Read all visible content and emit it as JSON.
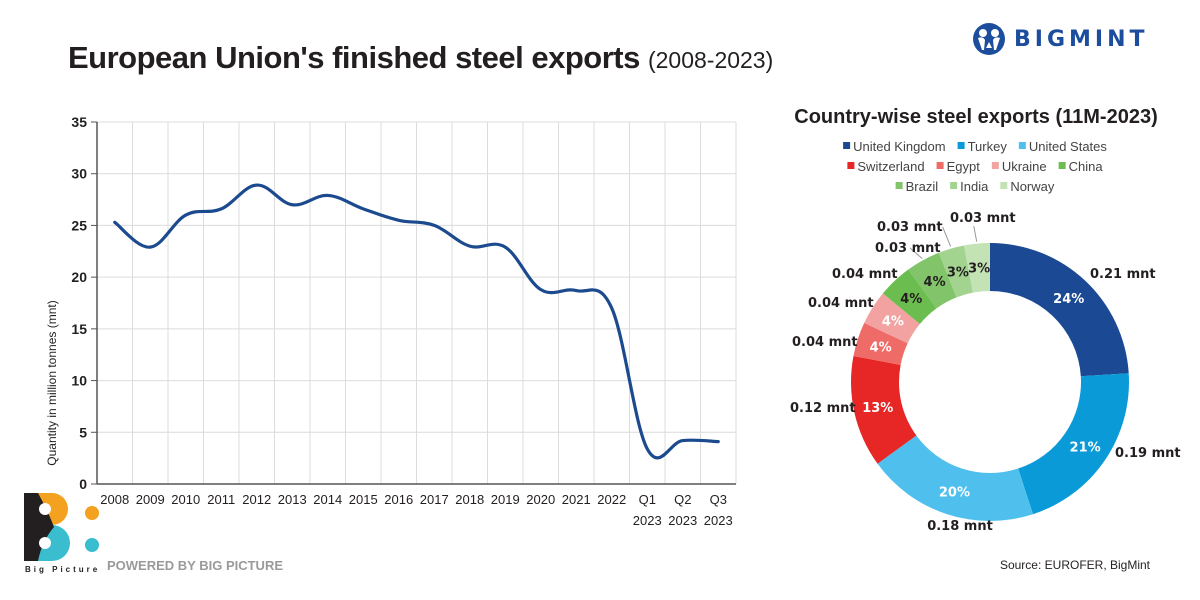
{
  "header": {
    "title_main": "European Union's finished steel exports",
    "title_sub": "(2008-2023)",
    "brand_name": "BIGMINT"
  },
  "footer": {
    "logo_label": "Big Picture",
    "powered_by": "POWERED BY BIG PICTURE",
    "source": "Source: EUROFER, BigMint"
  },
  "chart_data": [
    {
      "type": "line",
      "title": "European Union's finished steel exports (2008-2023)",
      "xlabel": "",
      "ylabel": "Quantity in million tonnes (mnt)",
      "ylim": [
        0,
        35
      ],
      "yticks": [
        0,
        5,
        10,
        15,
        20,
        25,
        30,
        35
      ],
      "grid": true,
      "color": "#1c4a8e",
      "categories": [
        [
          "2008"
        ],
        [
          "2009"
        ],
        [
          "2010"
        ],
        [
          "2011"
        ],
        [
          "2012"
        ],
        [
          "2013"
        ],
        [
          "2014"
        ],
        [
          "2015"
        ],
        [
          "2016"
        ],
        [
          "2017"
        ],
        [
          "2018"
        ],
        [
          "2019"
        ],
        [
          "2020"
        ],
        [
          "2021"
        ],
        [
          "2022"
        ],
        [
          "Q1",
          "2023"
        ],
        [
          "Q2",
          "2023"
        ],
        [
          "Q3",
          "2023"
        ]
      ],
      "values": [
        25.3,
        22.9,
        26.0,
        26.6,
        28.9,
        27.0,
        27.9,
        26.6,
        25.5,
        25.0,
        23.0,
        22.9,
        18.8,
        18.7,
        17.0,
        3.4,
        4.2,
        4.1
      ]
    },
    {
      "type": "pie",
      "variant": "donut",
      "title": "Country-wise steel exports (11M-2023)",
      "legend_position": "top",
      "unit": "mnt",
      "slices": [
        {
          "name": "United Kingdom",
          "value": 0.21,
          "percent": 24,
          "color": "#1b4994",
          "label_color": "#ffffff"
        },
        {
          "name": "Turkey",
          "value": 0.19,
          "percent": 21,
          "color": "#0a9ad8",
          "label_color": "#ffffff"
        },
        {
          "name": "United States",
          "value": 0.18,
          "percent": 20,
          "color": "#4fc0ee",
          "label_color": "#ffffff"
        },
        {
          "name": "Switzerland",
          "value": 0.12,
          "percent": 13,
          "color": "#e62725",
          "label_color": "#ffffff"
        },
        {
          "name": "Egypt",
          "value": 0.04,
          "percent": 4,
          "color": "#ee6b67",
          "label_color": "#ffffff"
        },
        {
          "name": "Ukraine",
          "value": 0.04,
          "percent": 4,
          "color": "#f2a3a1",
          "label_color": "#ffffff"
        },
        {
          "name": "China",
          "value": 0.04,
          "percent": 4,
          "color": "#6cbd4f",
          "label_color": "#231f20"
        },
        {
          "name": "Brazil",
          "value": 0.03,
          "percent": 4,
          "color": "#82c46a",
          "label_color": "#231f20"
        },
        {
          "name": "India",
          "value": 0.03,
          "percent": 3,
          "color": "#a2d38f",
          "label_color": "#231f20"
        },
        {
          "name": "Norway",
          "value": 0.03,
          "percent": 3,
          "color": "#c4e3b5",
          "label_color": "#231f20"
        }
      ],
      "value_labels": [
        "0.21 mnt",
        "0.19 mnt",
        "0.18 mnt",
        "0.12 mnt",
        "0.04 mnt",
        "0.04 mnt",
        "0.04 mnt",
        "0.03 mnt",
        "0.03 mnt",
        "0.03 mnt"
      ]
    }
  ]
}
